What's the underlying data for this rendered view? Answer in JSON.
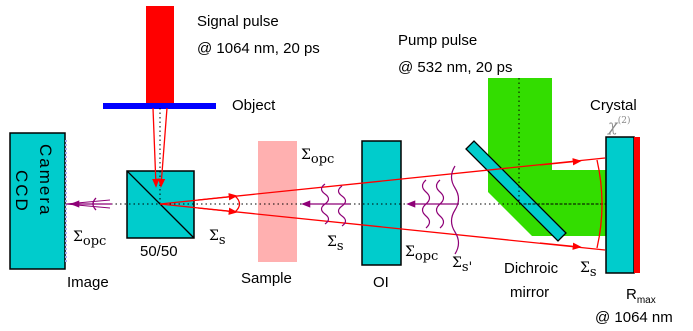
{
  "labels": {
    "signal_line1": "Signal pulse",
    "signal_line2": "@ 1064 nm, 20 ps",
    "pump_line1": "Pump pulse",
    "pump_line2": "@ 532 nm, 20 ps",
    "object": "Object",
    "crystal": "Crystal",
    "chi_base": "χ",
    "chi_order": "(2)",
    "ccd": "CCD",
    "camera": "Camera",
    "image": "Image",
    "beamsplitter": "50/50",
    "sample": "Sample",
    "isolator": "OI",
    "dichroic_line1": "Dichroic",
    "dichroic_line2": "mirror",
    "rmax_base": "R",
    "rmax_sub": "max",
    "rmax_wavelength": "@ 1064 nm",
    "sigma": "Σ",
    "opc": "opc",
    "s": "s",
    "s_prime": "s'"
  },
  "colors": {
    "signal": "#ff0000",
    "pump": "#33dd00",
    "optic": "#00cccc",
    "sample": "#ffb0b0",
    "object": "#0000ff",
    "conjugate": "#8e0077",
    "mirror_coating": "#ff0000"
  }
}
